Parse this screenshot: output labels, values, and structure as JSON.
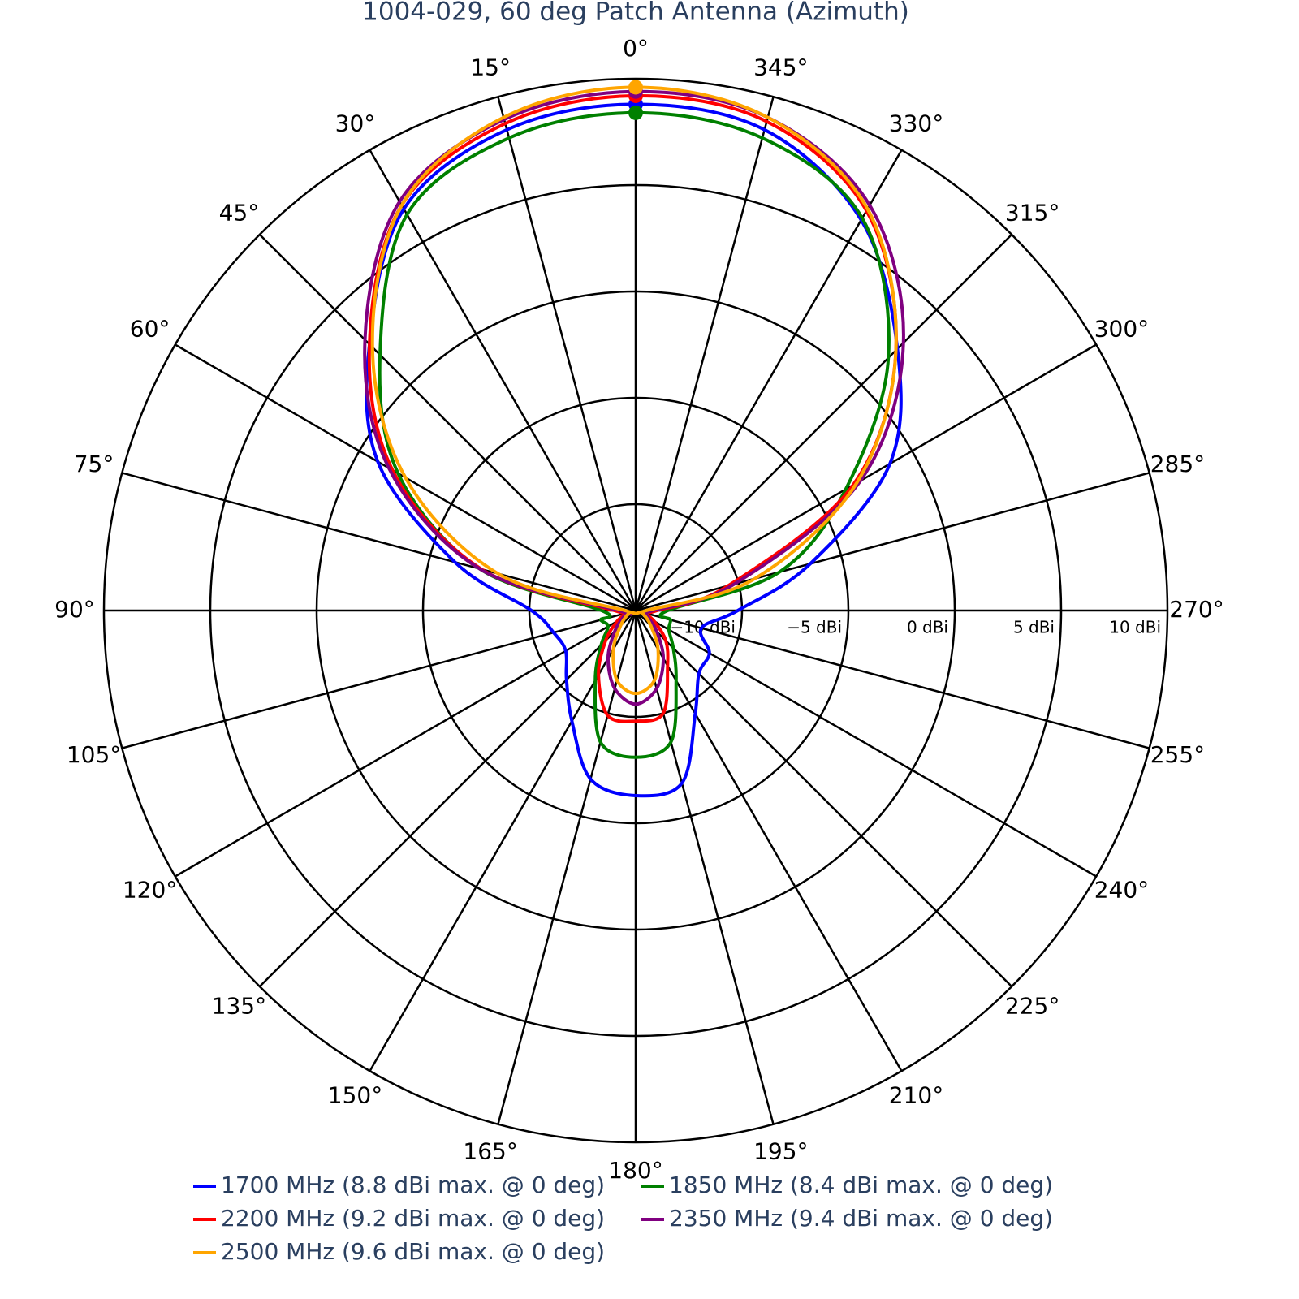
{
  "chart_data": {
    "type": "polar",
    "title": "1004-029, 60 deg Patch Antenna (Azimuth)",
    "direction": "counterclockwise",
    "rlim": [
      -15,
      10
    ],
    "rticks": [
      {
        "value": -10,
        "label": "−10 dBi"
      },
      {
        "value": -5,
        "label": "−5 dBi"
      },
      {
        "value": 0,
        "label": "0 dBi"
      },
      {
        "value": 5,
        "label": "5 dBi"
      },
      {
        "value": 10,
        "label": "10 dBi"
      }
    ],
    "thetaticks": [
      {
        "value": 0,
        "label": "0°"
      },
      {
        "value": 15,
        "label": "15°"
      },
      {
        "value": 30,
        "label": "30°"
      },
      {
        "value": 45,
        "label": "45°"
      },
      {
        "value": 60,
        "label": "60°"
      },
      {
        "value": 75,
        "label": "75°"
      },
      {
        "value": 90,
        "label": "90°"
      },
      {
        "value": 105,
        "label": "105°"
      },
      {
        "value": 120,
        "label": "120°"
      },
      {
        "value": 135,
        "label": "135°"
      },
      {
        "value": 150,
        "label": "150°"
      },
      {
        "value": 165,
        "label": "165°"
      },
      {
        "value": 180,
        "label": "180°"
      },
      {
        "value": 195,
        "label": "195°"
      },
      {
        "value": 210,
        "label": "210°"
      },
      {
        "value": 225,
        "label": "225°"
      },
      {
        "value": 240,
        "label": "240°"
      },
      {
        "value": 255,
        "label": "255°"
      },
      {
        "value": 270,
        "label": "270°"
      },
      {
        "value": 285,
        "label": "285°"
      },
      {
        "value": 300,
        "label": "300°"
      },
      {
        "value": 315,
        "label": "315°"
      },
      {
        "value": 330,
        "label": "330°"
      },
      {
        "value": 345,
        "label": "345°"
      }
    ],
    "theta": [
      0,
      15,
      30,
      45,
      60,
      75,
      90,
      105,
      120,
      135,
      150,
      165,
      180,
      195,
      210,
      225,
      240,
      255,
      270,
      285,
      300,
      315,
      330,
      345
    ],
    "peak_marker": true,
    "legend": "bottom",
    "series": [
      {
        "name": "1700 MHz (8.8 dBi max. @ 0 deg)",
        "color": "#0000ff",
        "values": [
          8.8,
          8.4,
          6.8,
          2.7,
          -1.0,
          -6.2,
          -10.1,
          -11,
          -11.2,
          -10.4,
          -9,
          -6.8,
          -6.3,
          -6.6,
          -9.4,
          -10.8,
          -11,
          -11.8,
          -10.2,
          -6.5,
          -1.2,
          2.4,
          6.2,
          8.4
        ]
      },
      {
        "name": "1850 MHz (8.4 dBi max. @ 0 deg)",
        "color": "#008000",
        "values": [
          8.4,
          8.0,
          6.5,
          2.0,
          -2.1,
          -7.4,
          -13.4,
          -13.3,
          -13.5,
          -12.7,
          -11.2,
          -8.6,
          -8.1,
          -8.6,
          -11.2,
          -12.5,
          -13.2,
          -13.3,
          -13.5,
          -8.0,
          -3.6,
          1.8,
          6.3,
          8.0
        ]
      },
      {
        "name": "2200 MHz (9.2 dBi max. @ 0 deg)",
        "color": "#ff0000",
        "values": [
          9.2,
          8.7,
          7.0,
          2.7,
          -1.8,
          -7.5,
          -14,
          -14.5,
          -14,
          -13,
          -11.5,
          -9.9,
          -9.8,
          -10,
          -12,
          -13,
          -14,
          -14.5,
          -14,
          -10.5,
          -3.2,
          2.3,
          6.7,
          8.8
        ]
      },
      {
        "name": "2350 MHz (9.4 dBi max. @ 0 deg)",
        "color": "#800080",
        "values": [
          9.4,
          8.9,
          7.2,
          3.0,
          -1.6,
          -7.4,
          -14.2,
          -14.5,
          -14.3,
          -13.6,
          -12.4,
          -11.2,
          -10.6,
          -11.2,
          -12.4,
          -13.6,
          -14.3,
          -14.5,
          -14.2,
          -10.2,
          -2.8,
          2.8,
          7.0,
          9.0
        ]
      },
      {
        "name": "2500 MHz (9.6 dBi max. @ 0 deg)",
        "color": "#ffa500",
        "values": [
          9.6,
          9.0,
          7.0,
          2.5,
          -2.5,
          -8.3,
          -14.5,
          -14.7,
          -14.5,
          -14,
          -12.9,
          -11.6,
          -11.1,
          -11.6,
          -12.9,
          -14,
          -14.5,
          -14.7,
          -14.5,
          -9.2,
          -3.0,
          2.3,
          6.8,
          9.0
        ]
      }
    ]
  }
}
